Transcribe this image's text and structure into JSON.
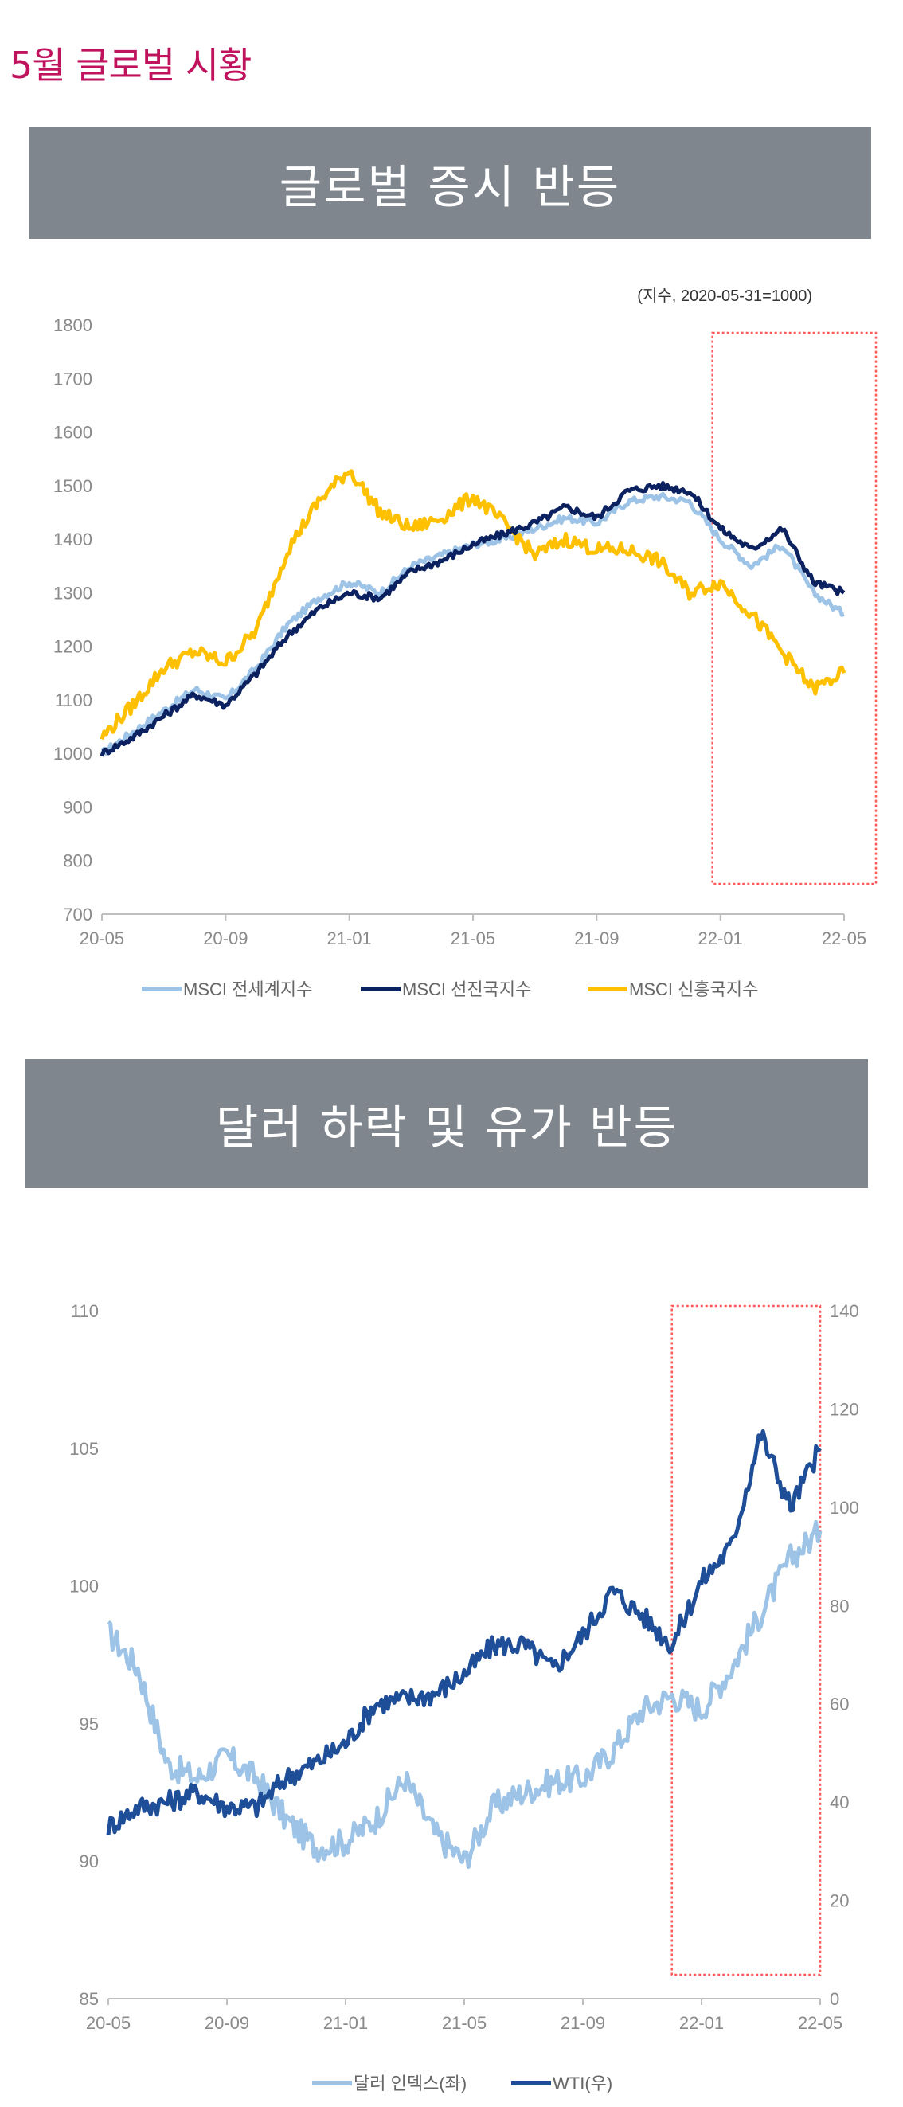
{
  "page_title": "5월 글로벌 시황",
  "sections": [
    {
      "header": "글로벌 증시 반등"
    },
    {
      "header": "달러 하락 및 유가 반등"
    }
  ],
  "chart_data": [
    {
      "type": "line",
      "title": "글로벌 증시 반등",
      "note": "(지수, 2020-05-31=1000)",
      "x_ticks": [
        "20-05",
        "20-09",
        "21-01",
        "21-05",
        "21-09",
        "22-01",
        "22-05"
      ],
      "x_range": [
        "2020-05",
        "2022-05"
      ],
      "ylim": [
        700,
        1800
      ],
      "y_ticks": [
        700,
        800,
        900,
        1000,
        1100,
        1200,
        1300,
        1400,
        1500,
        1600,
        1700,
        1800
      ],
      "grid": false,
      "legend_position": "bottom",
      "highlight_range": [
        "2022-01",
        "2022-05"
      ],
      "x": [
        "2020-05",
        "2020-06",
        "2020-07",
        "2020-08",
        "2020-09",
        "2020-10",
        "2020-11",
        "2020-12",
        "2021-01",
        "2021-02",
        "2021-03",
        "2021-04",
        "2021-05",
        "2021-06",
        "2021-07",
        "2021-08",
        "2021-09",
        "2021-10",
        "2021-11",
        "2021-12",
        "2022-01",
        "2022-02",
        "2022-03",
        "2022-04",
        "2022-05"
      ],
      "series": [
        {
          "name": "MSCI 전세계지수",
          "color": "#9dc3e6",
          "values": [
            1000,
            1040,
            1080,
            1120,
            1100,
            1160,
            1240,
            1290,
            1320,
            1300,
            1350,
            1370,
            1390,
            1400,
            1420,
            1440,
            1430,
            1470,
            1480,
            1470,
            1400,
            1350,
            1390,
            1300,
            1260
          ]
        },
        {
          "name": "MSCI 선진국지수",
          "color": "#0b2160",
          "values": [
            1000,
            1030,
            1070,
            1110,
            1090,
            1150,
            1220,
            1270,
            1300,
            1290,
            1340,
            1360,
            1390,
            1410,
            1430,
            1460,
            1440,
            1490,
            1500,
            1490,
            1420,
            1380,
            1420,
            1320,
            1300
          ]
        },
        {
          "name": "MSCI 신흥국지수",
          "color": "#ffc000",
          "values": [
            1030,
            1090,
            1160,
            1190,
            1170,
            1230,
            1380,
            1470,
            1530,
            1450,
            1420,
            1440,
            1480,
            1430,
            1370,
            1400,
            1380,
            1380,
            1360,
            1300,
            1320,
            1260,
            1190,
            1120,
            1150
          ]
        }
      ]
    },
    {
      "type": "line",
      "title": "달러 하락 및 유가 반등",
      "x_ticks": [
        "20-05",
        "20-09",
        "21-01",
        "21-05",
        "21-09",
        "22-01",
        "22-05"
      ],
      "x_range": [
        "2020-05",
        "2022-05"
      ],
      "ylim_left": [
        85,
        110
      ],
      "y_ticks_left": [
        85,
        90,
        95,
        100,
        105,
        110
      ],
      "ylim_right": [
        0,
        140
      ],
      "y_ticks_right": [
        0,
        20,
        40,
        60,
        80,
        100,
        120,
        140
      ],
      "grid": false,
      "legend_position": "bottom",
      "highlight_range": [
        "2021-12",
        "2022-05"
      ],
      "x": [
        "2020-05",
        "2020-06",
        "2020-07",
        "2020-08",
        "2020-09",
        "2020-10",
        "2020-11",
        "2020-12",
        "2021-01",
        "2021-02",
        "2021-03",
        "2021-04",
        "2021-05",
        "2021-06",
        "2021-07",
        "2021-08",
        "2021-09",
        "2021-10",
        "2021-11",
        "2021-12",
        "2022-01",
        "2022-02",
        "2022-03",
        "2022-04",
        "2022-05"
      ],
      "series": [
        {
          "name": "달러 인덱스(좌)",
          "axis": "left",
          "color": "#9dc3e6",
          "values": [
            98.3,
            97,
            93.5,
            93,
            93.8,
            93,
            91.5,
            90.5,
            90.7,
            91.5,
            93,
            91,
            90,
            92,
            92.5,
            92.9,
            93,
            94,
            95.5,
            96,
            95.5,
            97,
            99,
            101,
            102
          ]
        },
        {
          "name": "WTI(우)",
          "axis": "right",
          "color": "#1f4e99",
          "values": [
            35,
            39,
            40,
            42,
            39,
            39,
            45,
            48,
            52,
            60,
            61,
            62,
            66,
            72,
            72,
            67,
            74,
            83,
            78,
            72,
            85,
            92,
            115,
            100,
            112
          ]
        }
      ]
    }
  ]
}
